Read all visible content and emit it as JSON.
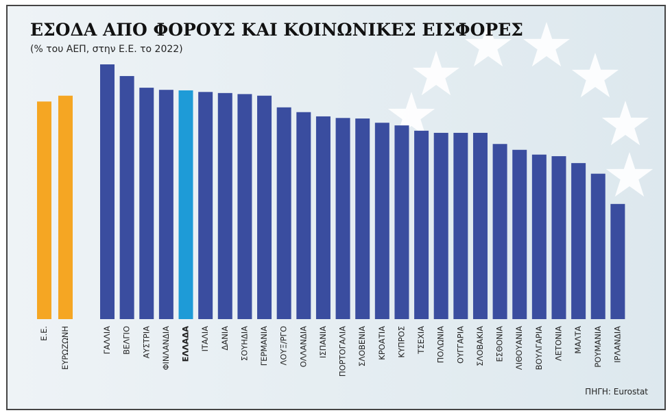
{
  "chart_data": {
    "type": "bar",
    "title": "ΕΣΟΔΑ ΑΠΟ ΦΟΡΟΥΣ ΚΑΙ ΚΟΙΝΩΝΙΚΕΣ ΕΙΣΦΟΡΕΣ",
    "subtitle": "(% του ΑΕΠ, στην Ε.Ε. το 2022)",
    "source": "ΠΗΓΗ: Eurostat",
    "categories": [
      "Ε.Ε.",
      "ΕΥΡΩΖΩΝΗ",
      "ΓΑΛΛΙΑ",
      "ΒΕΛΓΙΟ",
      "ΑΥΣΤΡΙΑ",
      "ΦΙΝΛΑΝΔΙΑ",
      "ΕΛΛΑΔΑ",
      "ΙΤΑΛΙΑ",
      "ΔΑΝΙΑ",
      "ΣΟΥΗΔΙΑ",
      "ΓΕΡΜΑΝΙΑ",
      "ΛΟΥΞ/ΡΓΟ",
      "ΟΛΛΑΝΔΙΑ",
      "ΙΣΠΑΝΙΑ",
      "ΠΟΡΤΟΓΑΛΙΑ",
      "ΣΛΟΒΕΝΙΑ",
      "ΚΡΟΑΤΙΑ",
      "ΚΥΠΡΟΣ",
      "ΤΣΕΧΙΑ",
      "ΠΟΛΩΝΙΑ",
      "ΟΥΓΓΑΡΙΑ",
      "ΣΛΟΒΑΚΙΑ",
      "ΕΣΘΟΝΙΑ",
      "ΛΙΘΟΥΑΝΙΑ",
      "ΒΟΥΛΓΑΡΙΑ",
      "ΛΕΤΟΝΙΑ",
      "ΜΑΛΤΑ",
      "ΡΟΥΜΑΝΙΑ",
      "ΙΡΛΑΝΔΙΑ"
    ],
    "values": [
      41.0,
      42.1,
      48.0,
      45.8,
      43.6,
      43.2,
      43.1,
      42.8,
      42.6,
      42.4,
      42.1,
      39.9,
      39.0,
      38.2,
      37.9,
      37.8,
      37.0,
      36.5,
      35.5,
      35.1,
      35.1,
      35.1,
      33.0,
      31.9,
      31.0,
      30.7,
      29.4,
      27.4,
      21.7
    ],
    "colors": [
      "#f5a623",
      "#f5a623",
      "#3a4d9f",
      "#3a4d9f",
      "#3a4d9f",
      "#3a4d9f",
      "#1e9bd7",
      "#3a4d9f",
      "#3a4d9f",
      "#3a4d9f",
      "#3a4d9f",
      "#3a4d9f",
      "#3a4d9f",
      "#3a4d9f",
      "#3a4d9f",
      "#3a4d9f",
      "#3a4d9f",
      "#3a4d9f",
      "#3a4d9f",
      "#3a4d9f",
      "#3a4d9f",
      "#3a4d9f",
      "#3a4d9f",
      "#3a4d9f",
      "#3a4d9f",
      "#3a4d9f",
      "#3a4d9f",
      "#3a4d9f",
      "#3a4d9f"
    ]
  }
}
